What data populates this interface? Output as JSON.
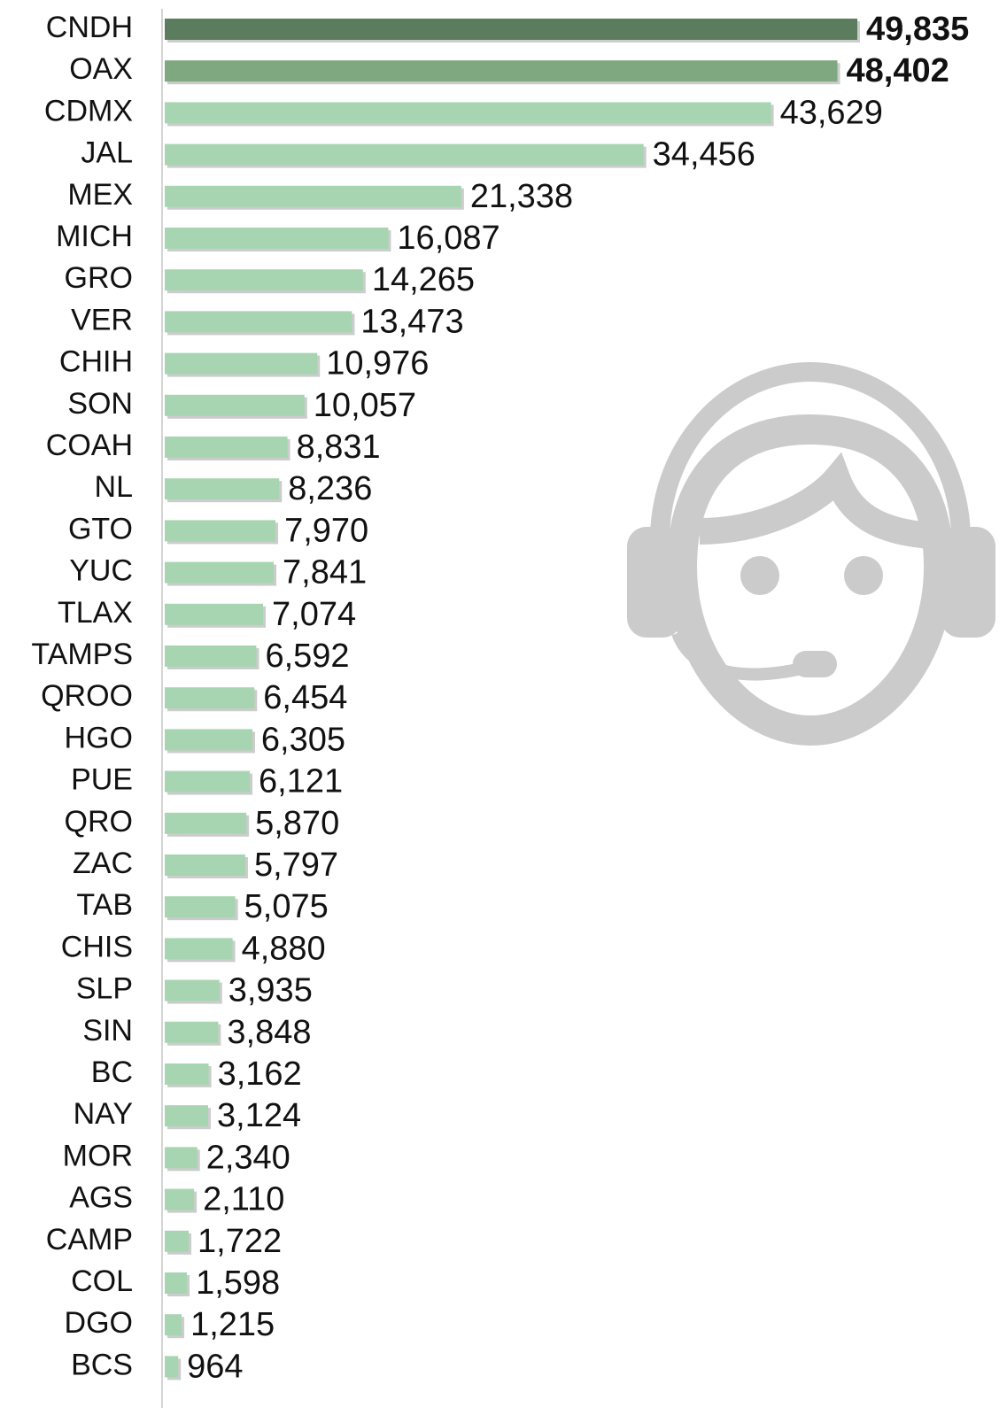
{
  "chart_data": {
    "type": "bar",
    "orientation": "horizontal",
    "categories": [
      "CNDH",
      "OAX",
      "CDMX",
      "JAL",
      "MEX",
      "MICH",
      "GRO",
      "VER",
      "CHIH",
      "SON",
      "COAH",
      "NL",
      "GTO",
      "YUC",
      "TLAX",
      "TAMPS",
      "QROO",
      "HGO",
      "PUE",
      "QRO",
      "ZAC",
      "TAB",
      "CHIS",
      "SLP",
      "SIN",
      "BC",
      "NAY",
      "MOR",
      "AGS",
      "CAMP",
      "COL",
      "DGO",
      "BCS"
    ],
    "values": [
      49835,
      48402,
      43629,
      34456,
      21338,
      16087,
      14265,
      13473,
      10976,
      10057,
      8831,
      8236,
      7970,
      7841,
      7074,
      6592,
      6454,
      6305,
      6121,
      5870,
      5797,
      5075,
      4880,
      3935,
      3848,
      3162,
      3124,
      2340,
      2110,
      1722,
      1598,
      1215,
      964
    ],
    "value_labels": [
      "49,835",
      "48,402",
      "43,629",
      "34,456",
      "21,338",
      "16,087",
      "14,265",
      "13,473",
      "10,976",
      "10,057",
      "8,831",
      "8,236",
      "7,970",
      "7,841",
      "7,074",
      "6,592",
      "6,454",
      "6,305",
      "6,121",
      "5,870",
      "5,797",
      "5,075",
      "4,880",
      "3,935",
      "3,848",
      "3,162",
      "3,124",
      "2,340",
      "2,110",
      "1,722",
      "1,598",
      "1,215",
      "964"
    ],
    "colors": [
      "#5b7d5d",
      "#7fa881",
      "#a8d5b1",
      "#a8d5b1",
      "#a8d5b1",
      "#a8d5b1",
      "#a8d5b1",
      "#a8d5b1",
      "#a8d5b1",
      "#a8d5b1",
      "#a8d5b1",
      "#a8d5b1",
      "#a8d5b1",
      "#a8d5b1",
      "#a8d5b1",
      "#a8d5b1",
      "#a8d5b1",
      "#a8d5b1",
      "#a8d5b1",
      "#a8d5b1",
      "#a8d5b1",
      "#a8d5b1",
      "#a8d5b1",
      "#a8d5b1",
      "#a8d5b1",
      "#a8d5b1",
      "#a8d5b1",
      "#a8d5b1",
      "#a8d5b1",
      "#a8d5b1",
      "#a8d5b1",
      "#a8d5b1",
      "#a8d5b1"
    ]
  }
}
